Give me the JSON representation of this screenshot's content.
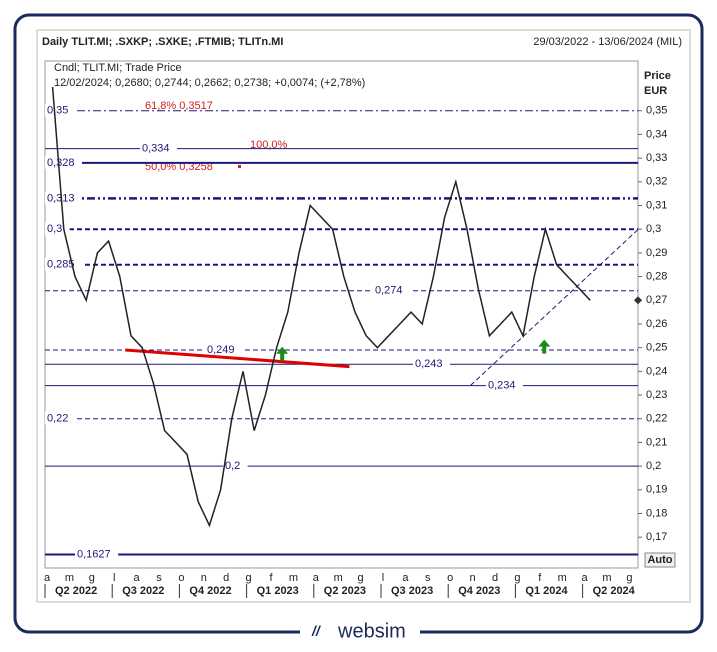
{
  "chart_data": {
    "type": "line",
    "title": "Daily TLIT.MI; .SXKP; .SXKE; .FTMIB; TLITn.MI",
    "date_range": "29/03/2022 - 13/06/2024 (MIL)",
    "legend_line1": "Cndl; TLIT.MI; Trade Price",
    "legend_line2": "12/02/2024; 0,2680; 0,2744; 0,2662; 0,2738; +0,0074; (+2,78%)",
    "axis_label": [
      "Price",
      "EUR"
    ],
    "auto_button": "Auto",
    "brand": "websim",
    "months": [
      "a",
      "m",
      "g",
      "l",
      "a",
      "s",
      "o",
      "n",
      "d",
      "g",
      "f",
      "m",
      "a",
      "m",
      "g",
      "l",
      "a",
      "s",
      "o",
      "n",
      "d",
      "g",
      "f",
      "m",
      "a",
      "m",
      "g"
    ],
    "quarters": [
      "Q2 2022",
      "Q3 2022",
      "Q4 2022",
      "Q1 2023",
      "Q2 2023",
      "Q3 2023",
      "Q4 2023",
      "Q1 2024",
      "Q2 2024"
    ],
    "ylim": [
      0.157,
      0.371
    ],
    "yticks": [
      {
        "value": 0.17,
        "label": "0,17"
      },
      {
        "value": 0.18,
        "label": "0,18"
      },
      {
        "value": 0.19,
        "label": "0,19"
      },
      {
        "value": 0.2,
        "label": "0,2"
      },
      {
        "value": 0.21,
        "label": "0,21"
      },
      {
        "value": 0.22,
        "label": "0,22"
      },
      {
        "value": 0.23,
        "label": "0,23"
      },
      {
        "value": 0.24,
        "label": "0,24"
      },
      {
        "value": 0.25,
        "label": "0,25"
      },
      {
        "value": 0.26,
        "label": "0,26"
      },
      {
        "value": 0.27,
        "label": "0,27"
      },
      {
        "value": 0.28,
        "label": "0,28"
      },
      {
        "value": 0.29,
        "label": "0,29"
      },
      {
        "value": 0.3,
        "label": "0,3"
      },
      {
        "value": 0.31,
        "label": "0,31"
      },
      {
        "value": 0.32,
        "label": "0,32"
      },
      {
        "value": 0.33,
        "label": "0,33"
      },
      {
        "value": 0.34,
        "label": "0,34"
      },
      {
        "value": 0.35,
        "label": "0,35"
      }
    ],
    "price": {
      "name": "TLIT.MI",
      "color": "#222222",
      "values": [
        0.36,
        0.3,
        0.28,
        0.27,
        0.29,
        0.295,
        0.28,
        0.255,
        0.25,
        0.235,
        0.215,
        0.21,
        0.205,
        0.185,
        0.175,
        0.19,
        0.22,
        0.24,
        0.215,
        0.23,
        0.25,
        0.265,
        0.29,
        0.31,
        0.305,
        0.3,
        0.28,
        0.265,
        0.255,
        0.25,
        0.255,
        0.26,
        0.265,
        0.26,
        0.28,
        0.305,
        0.32,
        0.3,
        0.275,
        0.255,
        0.26,
        0.265,
        0.255,
        0.28,
        0.3,
        0.285,
        0.28,
        0.275,
        0.27
      ]
    },
    "levels": [
      {
        "value": 0.35,
        "label": "0,35",
        "style": "dashdot"
      },
      {
        "value": 0.334,
        "label": "0,334",
        "style": "solid"
      },
      {
        "value": 0.328,
        "label": "0,328",
        "style": "bold"
      },
      {
        "value": 0.313,
        "label": "0,313",
        "style": "bolddashdot"
      },
      {
        "value": 0.3,
        "label": "0,3",
        "style": "bolddash"
      },
      {
        "value": 0.285,
        "label": "0,285",
        "style": "bolddash"
      },
      {
        "value": 0.274,
        "label": "0,274",
        "style": "dash"
      },
      {
        "value": 0.249,
        "label": "0,249",
        "style": "dash"
      },
      {
        "value": 0.243,
        "label": "0,243",
        "style": "solid"
      },
      {
        "value": 0.234,
        "label": "0,234",
        "style": "solid"
      },
      {
        "value": 0.22,
        "label": "0,22",
        "style": "dash"
      },
      {
        "value": 0.2,
        "label": "0,2",
        "style": "solid"
      },
      {
        "value": 0.1627,
        "label": "0,1627",
        "style": "bold"
      }
    ],
    "fib_labels": [
      "61,8% 0,3517",
      "50,0% 0,3258",
      "100,0%"
    ],
    "trendlines": [
      {
        "from": [
          3.5,
          0.249
        ],
        "to": [
          13.5,
          0.242
        ],
        "color": "#e00000"
      },
      {
        "from": [
          18.9,
          0.234
        ],
        "to": [
          26.4,
          0.3
        ],
        "color": "#1a1a7a"
      }
    ],
    "arrows": [
      {
        "x": 10.5,
        "y": 0.247,
        "color": "#1a8a1a"
      },
      {
        "x": 22.2,
        "y": 0.25,
        "color": "#1a8a1a"
      }
    ]
  }
}
